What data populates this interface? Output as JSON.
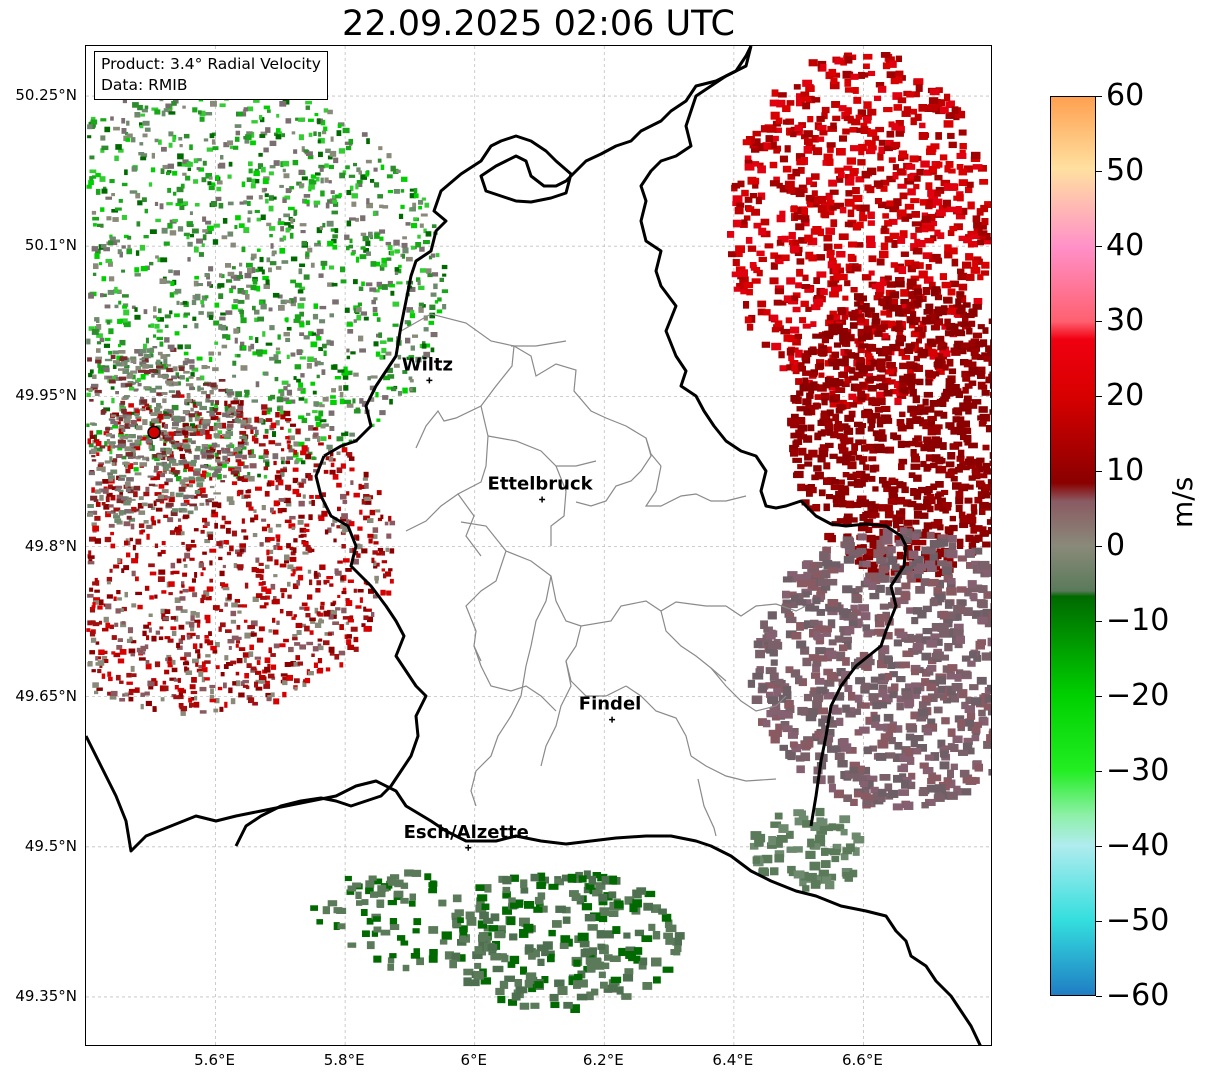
{
  "title": "22.09.2025 02:06 UTC",
  "info_box": {
    "product": "Product: 3.4° Radial Velocity",
    "data_source": "Data: RMIB"
  },
  "map": {
    "lon_range": [
      5.4,
      6.8
    ],
    "lat_range": [
      49.3,
      50.3
    ],
    "lat_ticks": [
      {
        "value": 50.25,
        "label": "50.25°N"
      },
      {
        "value": 50.1,
        "label": "50.1°N"
      },
      {
        "value": 49.95,
        "label": "49.95°N"
      },
      {
        "value": 49.8,
        "label": "49.8°N"
      },
      {
        "value": 49.65,
        "label": "49.65°N"
      },
      {
        "value": 49.5,
        "label": "49.5°N"
      },
      {
        "value": 49.35,
        "label": "49.35°N"
      }
    ],
    "lon_ticks": [
      {
        "value": 5.6,
        "label": "5.6°E"
      },
      {
        "value": 5.8,
        "label": "5.8°E"
      },
      {
        "value": 6.0,
        "label": "6°E"
      },
      {
        "value": 6.2,
        "label": "6.2°E"
      },
      {
        "value": 6.4,
        "label": "6.4°E"
      },
      {
        "value": 6.6,
        "label": "6.6°E"
      }
    ],
    "grid": true,
    "radar_site": {
      "lon": 5.505,
      "lat": 49.914
    },
    "cities": [
      {
        "name": "Wiltz",
        "lon": 5.93,
        "lat": 49.966
      },
      {
        "name": "Ettelbruck",
        "lon": 6.104,
        "lat": 49.847
      },
      {
        "name": "Findel",
        "lon": 6.212,
        "lat": 49.627
      },
      {
        "name": "Esch/Alzette",
        "lon": 5.99,
        "lat": 49.499
      }
    ]
  },
  "colorbar": {
    "unit": "m/s",
    "min": -60,
    "max": 60,
    "ticks": [
      {
        "value": 60,
        "label": "60"
      },
      {
        "value": 50,
        "label": "50"
      },
      {
        "value": 40,
        "label": "40"
      },
      {
        "value": 30,
        "label": "30"
      },
      {
        "value": 20,
        "label": "20"
      },
      {
        "value": 10,
        "label": "10"
      },
      {
        "value": 0,
        "label": "0"
      },
      {
        "value": -10,
        "label": "−10"
      },
      {
        "value": -20,
        "label": "−20"
      },
      {
        "value": -30,
        "label": "−30"
      },
      {
        "value": -40,
        "label": "−40"
      },
      {
        "value": -50,
        "label": "−50"
      },
      {
        "value": -60,
        "label": "−60"
      }
    ],
    "colors": {
      "neg_60": "#1f7ec4",
      "neg_50": "#34dede",
      "neg_40": "#b0ecee",
      "neg_30": "#8ef0a8",
      "neg_20": "#00d000",
      "neg_10": "#006a00",
      "zero": "#8a8a7a",
      "pos_10": "#8a0000",
      "pos_20": "#d80000",
      "pos_30": "#ff6070",
      "pos_40": "#ff90c8",
      "pos_50": "#ffe0a0",
      "pos_60": "#ffa050"
    }
  }
}
